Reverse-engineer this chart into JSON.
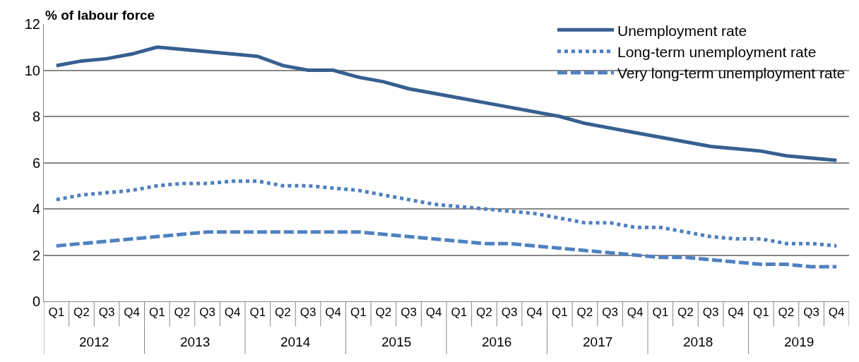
{
  "chart_data": {
    "type": "line",
    "ylabel": "% of labour force",
    "categories": [
      "Q1",
      "Q2",
      "Q3",
      "Q4",
      "Q1",
      "Q2",
      "Q3",
      "Q4",
      "Q1",
      "Q2",
      "Q3",
      "Q4",
      "Q1",
      "Q2",
      "Q3",
      "Q4",
      "Q1",
      "Q2",
      "Q3",
      "Q4",
      "Q1",
      "Q2",
      "Q3",
      "Q4",
      "Q1",
      "Q2",
      "Q3",
      "Q4",
      "Q1",
      "Q2",
      "Q3",
      "Q4"
    ],
    "annotations": [
      "2012",
      "2013",
      "2014",
      "2015",
      "2016",
      "2017",
      "2018",
      "2019"
    ],
    "series": [
      {
        "name": "Unemployment rate",
        "color": "#375f91",
        "line_style": "solid",
        "values": [
          10.2,
          10.4,
          10.5,
          10.7,
          11.0,
          10.9,
          10.8,
          10.7,
          10.6,
          10.2,
          10.0,
          10.0,
          9.7,
          9.5,
          9.2,
          9.0,
          8.8,
          8.6,
          8.4,
          8.2,
          8.0,
          7.7,
          7.5,
          7.3,
          7.1,
          6.9,
          6.7,
          6.6,
          6.5,
          6.3,
          6.2,
          6.1
        ]
      },
      {
        "name": "Long-term unemployment rate",
        "color": "#4f7fbd",
        "line_style": "dotted",
        "values": [
          4.4,
          4.6,
          4.7,
          4.8,
          5.0,
          5.1,
          5.1,
          5.2,
          5.2,
          5.0,
          5.0,
          4.9,
          4.8,
          4.6,
          4.4,
          4.2,
          4.1,
          4.0,
          3.9,
          3.8,
          3.6,
          3.4,
          3.4,
          3.2,
          3.2,
          3.0,
          2.8,
          2.7,
          2.7,
          2.5,
          2.5,
          2.4
        ]
      },
      {
        "name": "Very long-term unemployment rate",
        "color": "#4f81c1",
        "line_style": "dashed",
        "values": [
          2.4,
          2.5,
          2.6,
          2.7,
          2.8,
          2.9,
          3.0,
          3.0,
          3.0,
          3.0,
          3.0,
          3.0,
          3.0,
          2.9,
          2.8,
          2.7,
          2.6,
          2.5,
          2.5,
          2.4,
          2.3,
          2.2,
          2.1,
          2.0,
          1.9,
          1.9,
          1.8,
          1.7,
          1.6,
          1.6,
          1.5,
          1.5
        ]
      }
    ],
    "ylim": [
      0,
      12
    ],
    "yticks": [
      0,
      2,
      4,
      6,
      8,
      10,
      12
    ],
    "grid": "y",
    "legend": "top right",
    "marker": "none"
  }
}
